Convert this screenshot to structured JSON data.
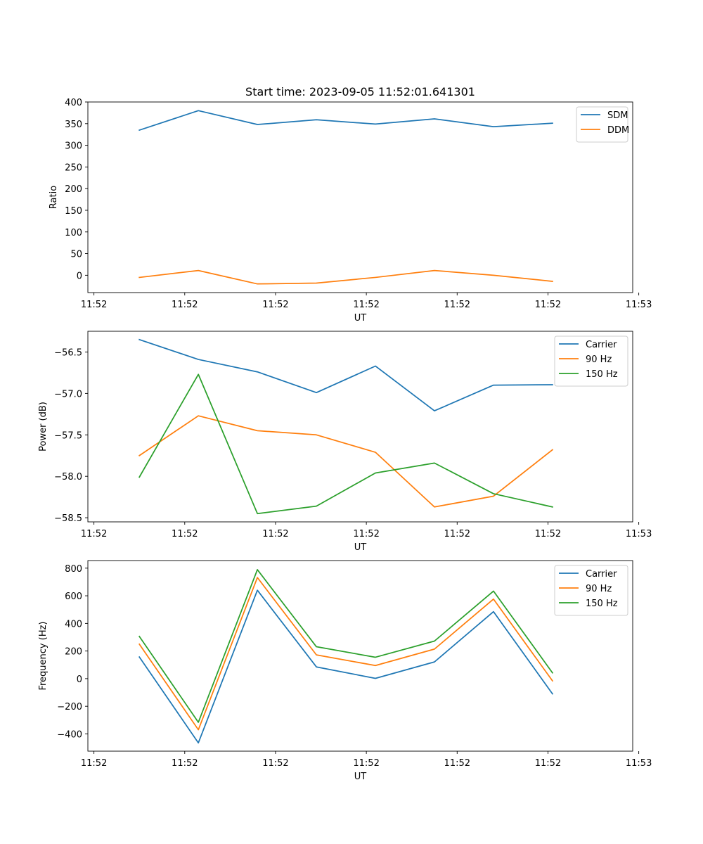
{
  "figure": {
    "title": "Start time: 2023-09-05 11:52:01.641301"
  },
  "colors": {
    "blue": "#1f77b4",
    "orange": "#ff7f0e",
    "green": "#2ca02c"
  },
  "chart_data": [
    {
      "type": "line",
      "title": "Start time: 2023-09-05 11:52:01.641301",
      "xlabel": "UT",
      "ylabel": "Ratio",
      "x": [
        0.5,
        1.15,
        1.8,
        2.45,
        3.1,
        3.75,
        4.4,
        5.05
      ],
      "xlim": [
        -0.0667,
        5.9333
      ],
      "xticks": [
        0,
        1,
        2,
        3,
        4,
        5,
        6
      ],
      "xticklabels": [
        "11:52",
        "11:52",
        "11:52",
        "11:52",
        "11:52",
        "11:52",
        "11:53"
      ],
      "ylim": [
        -40,
        400
      ],
      "yticks": [
        0,
        50,
        100,
        150,
        200,
        250,
        300,
        350,
        400
      ],
      "yticklabels": [
        "0",
        "50",
        "100",
        "150",
        "200",
        "250",
        "300",
        "350",
        "400"
      ],
      "legend_position": "top-right",
      "series": [
        {
          "name": "SDM",
          "color": "blue",
          "values": [
            335,
            380,
            348,
            359,
            349,
            361,
            343,
            351
          ]
        },
        {
          "name": "DDM",
          "color": "orange",
          "values": [
            -5,
            11,
            -20,
            -18,
            -5,
            11,
            0,
            -14
          ]
        }
      ]
    },
    {
      "type": "line",
      "title": "",
      "xlabel": "UT",
      "ylabel": "Power (dB)",
      "x": [
        0.5,
        1.15,
        1.8,
        2.45,
        3.1,
        3.75,
        4.4,
        5.05
      ],
      "xlim": [
        -0.0667,
        5.9333
      ],
      "xticks": [
        0,
        1,
        2,
        3,
        4,
        5,
        6
      ],
      "xticklabels": [
        "11:52",
        "11:52",
        "11:52",
        "11:52",
        "11:52",
        "11:52",
        "11:53"
      ],
      "ylim": [
        -58.55,
        -56.25
      ],
      "yticks": [
        -56.5,
        -57.0,
        -57.5,
        -58.0,
        -58.5
      ],
      "yticklabels": [
        "−56.5",
        "−57.0",
        "−57.5",
        "−58.0",
        "−58.5"
      ],
      "legend_position": "top-right",
      "series": [
        {
          "name": "Carrier",
          "color": "blue",
          "values": [
            -56.35,
            -56.59,
            -56.74,
            -56.99,
            -56.67,
            -57.21,
            -56.9,
            -56.895
          ]
        },
        {
          "name": "90 Hz",
          "color": "orange",
          "values": [
            -57.75,
            -57.27,
            -57.45,
            -57.5,
            -57.71,
            -58.37,
            -58.24,
            -57.68
          ]
        },
        {
          "name": "150 Hz",
          "color": "green",
          "values": [
            -58.01,
            -56.77,
            -58.45,
            -58.36,
            -57.96,
            -57.84,
            -58.21,
            -58.37
          ]
        }
      ]
    },
    {
      "type": "line",
      "title": "",
      "xlabel": "UT",
      "ylabel": "Frequency (Hz)",
      "x": [
        0.5,
        1.15,
        1.8,
        2.45,
        3.1,
        3.75,
        4.4,
        5.05
      ],
      "xlim": [
        -0.0667,
        5.9333
      ],
      "xticks": [
        0,
        1,
        2,
        3,
        4,
        5,
        6
      ],
      "xticklabels": [
        "11:52",
        "11:52",
        "11:52",
        "11:52",
        "11:52",
        "11:52",
        "11:53"
      ],
      "ylim": [
        -525,
        855
      ],
      "yticks": [
        -400,
        -200,
        0,
        200,
        400,
        600,
        800
      ],
      "yticklabels": [
        "−400",
        "−200",
        "0",
        "200",
        "400",
        "600",
        "800"
      ],
      "legend_position": "top-right",
      "series": [
        {
          "name": "Carrier",
          "color": "blue",
          "values": [
            157,
            -465,
            640,
            85,
            2,
            121,
            485,
            -110
          ]
        },
        {
          "name": "90 Hz",
          "color": "orange",
          "values": [
            250,
            -370,
            732,
            172,
            95,
            214,
            576,
            -16
          ]
        },
        {
          "name": "150 Hz",
          "color": "green",
          "values": [
            306,
            -316,
            789,
            231,
            155,
            272,
            634,
            42
          ]
        }
      ]
    }
  ]
}
